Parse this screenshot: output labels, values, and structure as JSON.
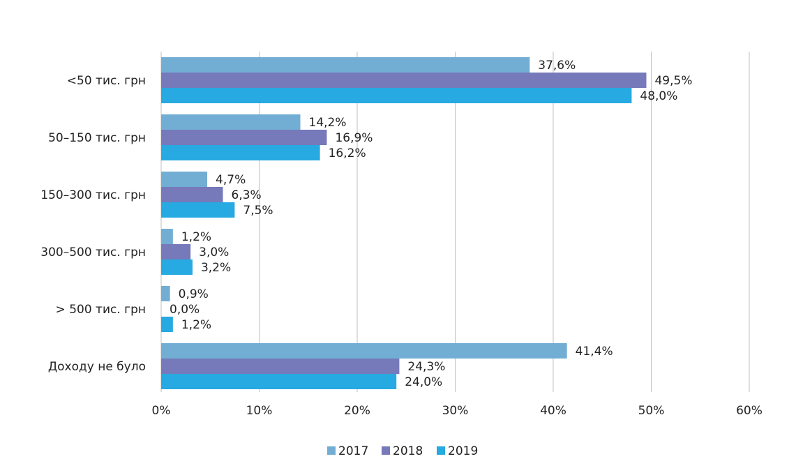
{
  "chart_data": {
    "type": "bar",
    "orientation": "horizontal",
    "categories": [
      "<50 тис. грн",
      "50–150 тис. грн",
      "150–300 тис. грн",
      "300–500 тис. грн",
      "> 500 тис. грн",
      "Доходу не було"
    ],
    "series": [
      {
        "name": "2017",
        "color": "#72AED4",
        "values": [
          37.6,
          14.2,
          4.7,
          1.2,
          0.9,
          41.4
        ],
        "labels": [
          "37,6%",
          "14,2%",
          "4,7%",
          "1,2%",
          "0,9%",
          "41,4%"
        ]
      },
      {
        "name": "2018",
        "color": "#7679BA",
        "values": [
          49.5,
          16.9,
          6.3,
          3.0,
          0.0,
          24.3
        ],
        "labels": [
          "49,5%",
          "16,9%",
          "6,3%",
          "3,0%",
          "0,0%",
          "24,3%"
        ]
      },
      {
        "name": "2019",
        "color": "#27A9E1",
        "values": [
          48.0,
          16.2,
          7.5,
          3.2,
          1.2,
          24.0
        ],
        "labels": [
          "48,0%",
          "16,2%",
          "7,5%",
          "3,2%",
          "1,2%",
          "24,0%"
        ]
      }
    ],
    "xlim": [
      0,
      60
    ],
    "xticks": [
      0,
      10,
      20,
      30,
      40,
      50,
      60
    ],
    "xtick_labels": [
      "0%",
      "10%",
      "20%",
      "30%",
      "40%",
      "50%",
      "60%"
    ],
    "grid": true,
    "legend_position": "bottom-center",
    "title": "",
    "xlabel": "",
    "ylabel": ""
  }
}
